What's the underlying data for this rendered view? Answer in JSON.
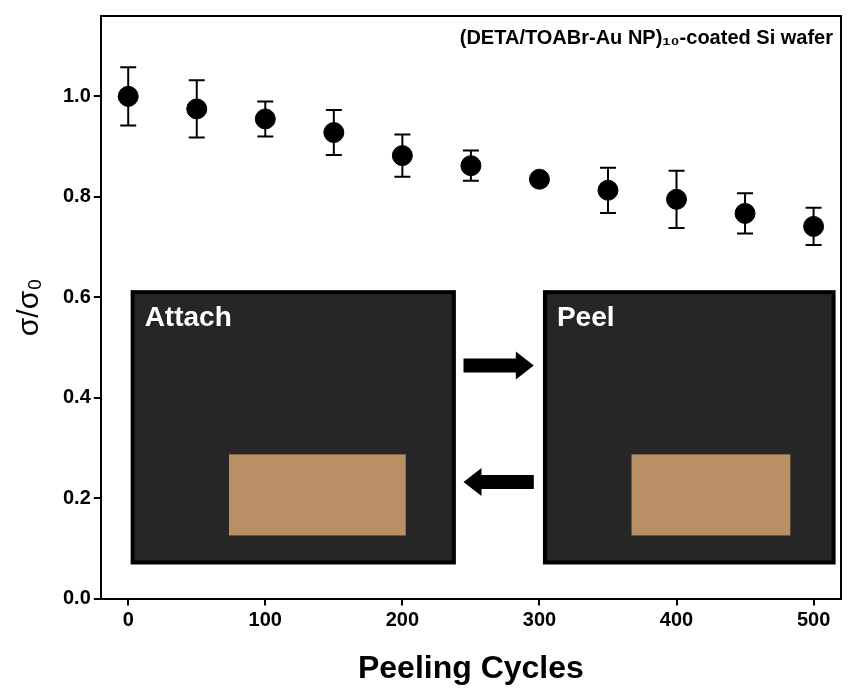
{
  "chart_data": {
    "type": "scatter",
    "title": "(DETA/TOABr-Au NP)₁₀-coated Si wafer",
    "x_label": "Peeling Cycles",
    "y_label": "σ/σ₀",
    "x": [
      0,
      50,
      100,
      150,
      200,
      250,
      300,
      350,
      400,
      450,
      500
    ],
    "values": [
      1.0,
      0.975,
      0.955,
      0.928,
      0.882,
      0.862,
      0.835,
      0.813,
      0.795,
      0.767,
      0.741
    ],
    "errors": [
      0.058,
      0.057,
      0.035,
      0.045,
      0.042,
      0.03,
      0.01,
      0.045,
      0.057,
      0.04,
      0.037
    ],
    "color": "#000000",
    "marker": "circle",
    "xlim": [
      -20,
      520
    ],
    "xticks": [
      0,
      100,
      200,
      300,
      400,
      500
    ],
    "ylim": [
      0,
      1.16
    ],
    "yticks": [
      {
        "value": 0,
        "label": "0.0"
      },
      0.2,
      0.4,
      0.6,
      0.8,
      {
        "value": 1,
        "label": "1.0"
      }
    ],
    "grid": false,
    "annotations": [
      "Attach",
      "Peel"
    ]
  }
}
